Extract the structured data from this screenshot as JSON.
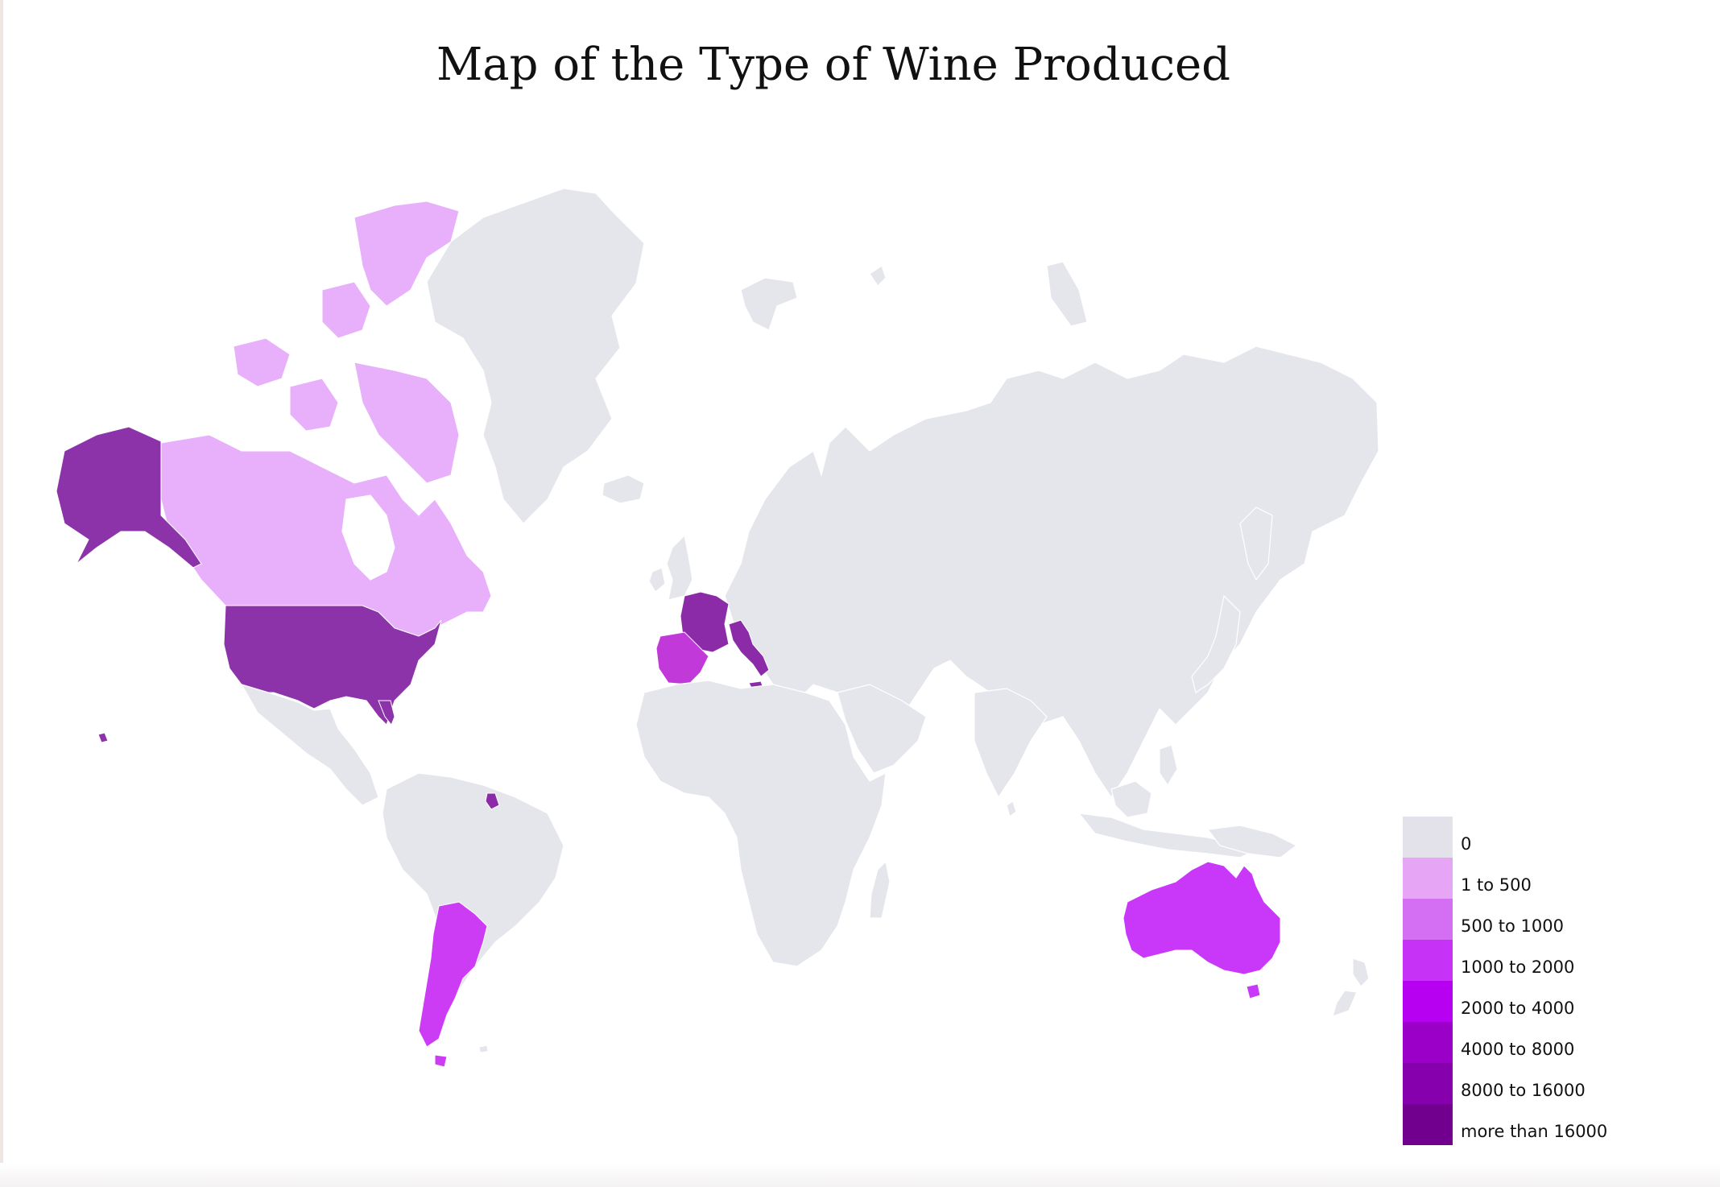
{
  "title": "Map of the Type of Wine Produced",
  "colors": {
    "no_data": "#e5e5ec",
    "background": "#ffffff"
  },
  "legend": {
    "items": [
      {
        "label": "0",
        "color": "#e3e2ea"
      },
      {
        "label": "1 to 500",
        "color": "#e6a6f5"
      },
      {
        "label": "500 to 1000",
        "color": "#d46ff3"
      },
      {
        "label": "1000 to 2000",
        "color": "#c633f7"
      },
      {
        "label": "2000 to 4000",
        "color": "#b700f1"
      },
      {
        "label": "4000 to 8000",
        "color": "#9a00c7"
      },
      {
        "label": "8000 to 16000",
        "color": "#8600ad"
      },
      {
        "label": "more than 16000",
        "color": "#72008f"
      }
    ]
  },
  "regions": [
    {
      "name": "Canada",
      "category": "1 to 500",
      "color": "#e8b0fb"
    },
    {
      "name": "United States",
      "category": "8000 to 16000",
      "color": "#8c33aa"
    },
    {
      "name": "France",
      "category": "more than 16000",
      "color": "#8b2ba8"
    },
    {
      "name": "Italy",
      "category": "more than 16000",
      "color": "#8b2ba8"
    },
    {
      "name": "Spain",
      "category": "1000 to 2000",
      "color": "#c13ad9"
    },
    {
      "name": "Argentina",
      "category": "1000 to 2000",
      "color": "#cd3cf5"
    },
    {
      "name": "Australia",
      "category": "1000 to 2000",
      "color": "#c937f9"
    },
    {
      "name": "French Guiana",
      "category": "more than 16000",
      "color": "#8b2ba8"
    }
  ]
}
